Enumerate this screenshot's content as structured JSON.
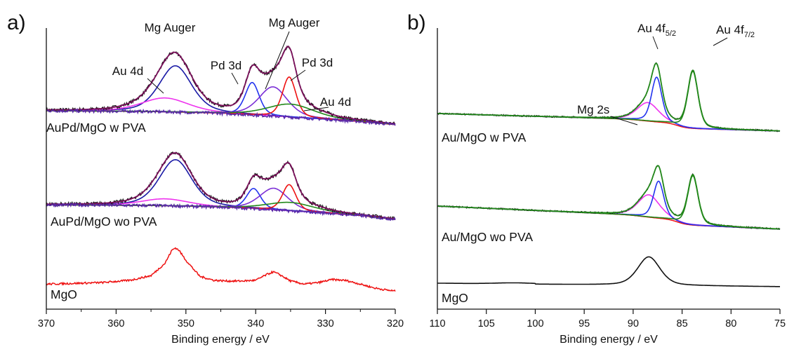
{
  "chart_data": [
    {
      "type": "line",
      "panel_label": "a)",
      "xlabel": "Binding energy / eV",
      "xlim": [
        370,
        320
      ],
      "x_reversed": true,
      "xticks": [
        "370",
        "360",
        "350",
        "340",
        "330",
        "320"
      ],
      "y_axis_visible": false,
      "colors": {
        "raw": "#111111",
        "envelope": "#7a0f5a",
        "background": "#5a2aa8",
        "mg_auger_1": "#1a1aa6",
        "mg_auger_2": "#7b2fd6",
        "pd_3d_1": "#2233ee",
        "pd_3d_2": "#ee1111",
        "au_4d_1": "#ee33ee",
        "au_4d_2": "#22881a",
        "mgo": "#ee1111"
      },
      "sample_labels": [
        "AuPd/MgO w PVA",
        "AuPd/MgO wo PVA",
        "MgO"
      ],
      "peak_labels": [
        {
          "text": "Mg Auger",
          "x_eV": 351.5
        },
        {
          "text": "Mg Auger",
          "x_eV": 337.5
        },
        {
          "text": "Au 4d",
          "x_eV": 353.0
        },
        {
          "text": "Pd 3d",
          "x_eV": 340.5
        },
        {
          "text": "Pd 3d",
          "x_eV": 335.2
        },
        {
          "text": "Au 4d",
          "x_eV": 335.0
        }
      ],
      "series": [
        {
          "sample": "AuPd/MgO w PVA",
          "component": "background",
          "color": "#5a2aa8",
          "x": [
            370,
            355,
            350,
            345,
            340,
            335,
            330,
            325,
            320
          ],
          "y": [
            1.0,
            0.95,
            0.9,
            0.84,
            0.72,
            0.58,
            0.45,
            0.3,
            0.1
          ]
        },
        {
          "sample": "AuPd/MgO w PVA",
          "component": "Mg Auger",
          "color": "#1a1aa6",
          "center": 351.5,
          "height": 3.0,
          "fwhm": 5.5
        },
        {
          "sample": "AuPd/MgO w PVA",
          "component": "Au 4d",
          "color": "#ee33ee",
          "center": 353.0,
          "height": 0.9,
          "fwhm": 8.0
        },
        {
          "sample": "AuPd/MgO w PVA",
          "component": "Pd 3d",
          "color": "#2233ee",
          "center": 340.5,
          "height": 2.1,
          "fwhm": 2.4
        },
        {
          "sample": "AuPd/MgO w PVA",
          "component": "Mg Auger",
          "color": "#7b2fd6",
          "center": 337.5,
          "height": 1.9,
          "fwhm": 4.8
        },
        {
          "sample": "AuPd/MgO w PVA",
          "component": "Pd 3d",
          "color": "#ee1111",
          "center": 335.2,
          "height": 2.6,
          "fwhm": 2.3
        },
        {
          "sample": "AuPd/MgO w PVA",
          "component": "Au 4d",
          "color": "#22881a",
          "center": 335.0,
          "height": 0.85,
          "fwhm": 8.0
        },
        {
          "sample": "AuPd/MgO wo PVA",
          "component": "background",
          "color": "#5a2aa8",
          "x": [
            370,
            355,
            350,
            345,
            340,
            335,
            330,
            325,
            320
          ],
          "y": [
            0.95,
            0.9,
            0.86,
            0.8,
            0.7,
            0.55,
            0.42,
            0.25,
            0.0
          ]
        },
        {
          "sample": "AuPd/MgO wo PVA",
          "component": "Mg Auger",
          "color": "#1a1aa6",
          "center": 351.5,
          "height": 3.0,
          "fwhm": 5.5
        },
        {
          "sample": "AuPd/MgO wo PVA",
          "component": "Au 4d",
          "color": "#ee33ee",
          "center": 353.0,
          "height": 0.45,
          "fwhm": 8.0
        },
        {
          "sample": "AuPd/MgO wo PVA",
          "component": "Pd 3d",
          "color": "#2233ee",
          "center": 340.3,
          "height": 1.3,
          "fwhm": 2.4
        },
        {
          "sample": "AuPd/MgO wo PVA",
          "component": "Mg Auger",
          "color": "#7b2fd6",
          "center": 337.4,
          "height": 1.4,
          "fwhm": 4.8
        },
        {
          "sample": "AuPd/MgO wo PVA",
          "component": "Pd 3d",
          "color": "#ee1111",
          "center": 335.2,
          "height": 1.7,
          "fwhm": 2.3
        },
        {
          "sample": "AuPd/MgO wo PVA",
          "component": "Au 4d",
          "color": "#22881a",
          "center": 335.0,
          "height": 0.55,
          "fwhm": 8.0
        },
        {
          "sample": "MgO",
          "component": "raw",
          "color": "#ee1111",
          "x": [
            370,
            366,
            362,
            358,
            355,
            353,
            352,
            351.5,
            351,
            350,
            348,
            346,
            344,
            342,
            340,
            338.5,
            337.5,
            336.5,
            335,
            333,
            331,
            329,
            327,
            325,
            323,
            321,
            320
          ],
          "y": [
            0.35,
            0.4,
            0.45,
            0.6,
            0.9,
            1.7,
            2.55,
            2.7,
            2.55,
            1.9,
            0.85,
            0.6,
            0.55,
            0.55,
            0.6,
            0.95,
            1.15,
            0.95,
            0.55,
            0.35,
            0.45,
            0.65,
            0.58,
            0.35,
            0.1,
            -0.05,
            -0.1
          ]
        }
      ]
    },
    {
      "type": "line",
      "panel_label": "b)",
      "xlabel": "Binding energy / eV",
      "xlim": [
        110,
        75
      ],
      "x_reversed": true,
      "xticks": [
        "110",
        "105",
        "100",
        "95",
        "90",
        "85",
        "80",
        "75"
      ],
      "y_axis_visible": false,
      "colors": {
        "raw": "#111111",
        "envelope": "#22881a",
        "background": "#ee1111",
        "mg_2s": "#ee33ee",
        "au_4f52": "#2233ee",
        "au_4f72": "#22881a",
        "mgo": "#111111"
      },
      "sample_labels": [
        "Au/MgO w PVA",
        "Au/MgO wo PVA",
        "MgO"
      ],
      "peak_labels": [
        {
          "text": "Au 4f",
          "subscript": "5/2",
          "x_eV": 87.5
        },
        {
          "text": "Au 4f",
          "subscript": "7/2",
          "x_eV": 84.0
        },
        {
          "text": "Mg 2s",
          "x_eV": 88.5
        }
      ],
      "series": [
        {
          "sample": "Au/MgO w PVA",
          "component": "Mg 2s",
          "color": "#ee33ee",
          "center": 88.5,
          "height": 1.2,
          "fwhm": 2.6
        },
        {
          "sample": "Au/MgO w PVA",
          "component": "Au 4f 5/2",
          "color": "#2233ee",
          "center": 87.6,
          "height": 2.9,
          "fwhm": 1.25
        },
        {
          "sample": "Au/MgO w PVA",
          "component": "Au 4f 7/2",
          "color": "#22881a",
          "center": 83.9,
          "height": 3.7,
          "fwhm": 1.25
        },
        {
          "sample": "Au/MgO wo PVA",
          "component": "Mg 2s",
          "color": "#ee33ee",
          "center": 88.4,
          "height": 1.45,
          "fwhm": 2.6
        },
        {
          "sample": "Au/MgO wo PVA",
          "component": "Au 4f 5/2",
          "color": "#2233ee",
          "center": 87.4,
          "height": 2.4,
          "fwhm": 1.25
        },
        {
          "sample": "Au/MgO wo PVA",
          "component": "Au 4f 7/2",
          "color": "#22881a",
          "center": 83.9,
          "height": 3.2,
          "fwhm": 1.25
        },
        {
          "sample": "MgO",
          "component": "Mg 2s",
          "color": "#111111",
          "center": 88.4,
          "height": 1.85,
          "fwhm": 2.7
        }
      ]
    }
  ]
}
